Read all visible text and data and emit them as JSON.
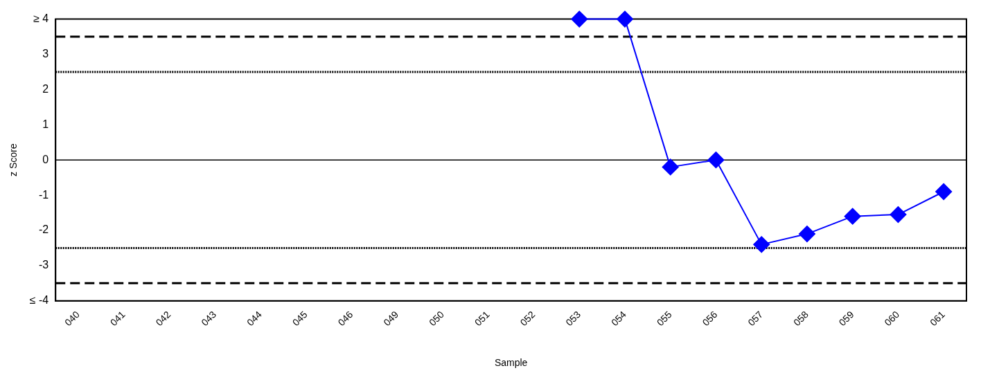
{
  "chart_data": {
    "type": "line",
    "xlabel": "Sample",
    "ylabel": "z Score",
    "categories": [
      "040",
      "041",
      "042",
      "043",
      "044",
      "045",
      "046",
      "049",
      "050",
      "051",
      "052",
      "053",
      "054",
      "055",
      "056",
      "057",
      "058",
      "059",
      "060",
      "061"
    ],
    "series": [
      {
        "color": "#0000ff",
        "values": [
          null,
          null,
          null,
          null,
          null,
          null,
          null,
          null,
          null,
          null,
          null,
          4,
          4,
          -0.2,
          0,
          -2.4,
          -2.1,
          -1.6,
          -1.55,
          -0.9
        ]
      }
    ],
    "ylim": [
      -4,
      4
    ],
    "yticks": [
      {
        "value": -4,
        "label": "≤ -4"
      },
      -3,
      -2,
      -1,
      0,
      1,
      2,
      3,
      {
        "value": 4,
        "label": "≥ 4"
      }
    ],
    "ref_lines": [
      {
        "axis": "y",
        "value": 3.5,
        "color": "#000000",
        "line_style": "dashed"
      },
      {
        "axis": "y",
        "value": 2.5,
        "color": "#000000",
        "line_style": "dotted"
      },
      {
        "axis": "y",
        "value": 0,
        "color": "#000000",
        "line_style": "solid"
      },
      {
        "axis": "y",
        "value": -2.5,
        "color": "#000000",
        "line_style": "dotted"
      },
      {
        "axis": "y",
        "value": -3.5,
        "color": "#000000",
        "line_style": "dashed"
      }
    ],
    "grid": false,
    "legend": false,
    "marker": "diamond",
    "line_style": "solid"
  }
}
